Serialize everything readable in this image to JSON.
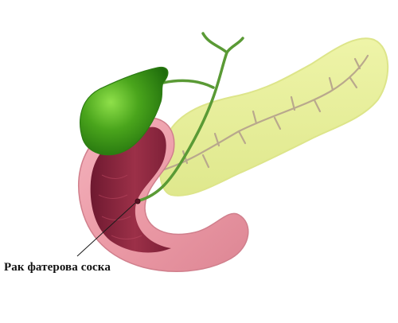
{
  "diagram": {
    "labels": [
      {
        "text": "Рак фатерова соска"
      }
    ],
    "parts": {
      "gallbladder": {
        "color": "#4aa51c"
      },
      "bile_ducts": {
        "color": "#5a9a35"
      },
      "pancreas": {
        "color": "#e7ee9a"
      },
      "pancreatic_duct": {
        "color": "#b8a58a"
      },
      "duodenum_outer": {
        "color": "#eb9aa6"
      },
      "duodenum_inner": {
        "color": "#8e2a3f"
      }
    }
  }
}
